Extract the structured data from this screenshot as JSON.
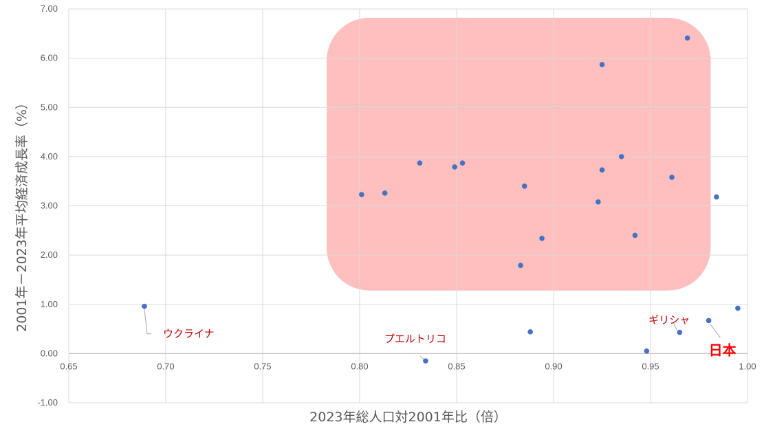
{
  "chart_data": {
    "type": "scatter",
    "xlabel": "2023年総人口対2001年比（倍）",
    "ylabel": "2001年－2023年平均経済成長率（%）",
    "xlim": [
      0.65,
      1.0
    ],
    "ylim": [
      -1.0,
      7.0
    ],
    "x_ticks": [
      "0.65",
      "0.70",
      "0.75",
      "0.80",
      "0.85",
      "0.90",
      "0.95",
      "1.00"
    ],
    "y_ticks": [
      "-1.00",
      "0.00",
      "1.00",
      "2.00",
      "3.00",
      "4.00",
      "5.00",
      "6.00",
      "7.00"
    ],
    "grid": true,
    "highlight_region": {
      "x": [
        0.783,
        0.981
      ],
      "y": [
        1.28,
        6.82
      ],
      "color": "#ffbfbf"
    },
    "series": [
      {
        "color": "#4472c4",
        "points": [
          {
            "x": 0.689,
            "y": 0.96
          },
          {
            "x": 0.834,
            "y": -0.15
          },
          {
            "x": 0.888,
            "y": 0.44
          },
          {
            "x": 0.948,
            "y": 0.05
          },
          {
            "x": 0.965,
            "y": 0.43
          },
          {
            "x": 0.98,
            "y": 0.67
          },
          {
            "x": 0.984,
            "y": 3.18
          },
          {
            "x": 0.995,
            "y": 0.92
          },
          {
            "x": 0.801,
            "y": 3.23
          },
          {
            "x": 0.813,
            "y": 3.26
          },
          {
            "x": 0.831,
            "y": 3.87
          },
          {
            "x": 0.849,
            "y": 3.79
          },
          {
            "x": 0.853,
            "y": 3.87
          },
          {
            "x": 0.883,
            "y": 1.79
          },
          {
            "x": 0.885,
            "y": 3.4
          },
          {
            "x": 0.894,
            "y": 2.34
          },
          {
            "x": 0.923,
            "y": 3.08
          },
          {
            "x": 0.925,
            "y": 3.73
          },
          {
            "x": 0.925,
            "y": 5.87
          },
          {
            "x": 0.935,
            "y": 4.0
          },
          {
            "x": 0.942,
            "y": 2.4
          },
          {
            "x": 0.961,
            "y": 3.58
          },
          {
            "x": 0.969,
            "y": 6.41
          }
        ]
      }
    ],
    "annotations": [
      {
        "text": "ウクライナ",
        "x": 0.689,
        "y": 0.96,
        "style": "normal"
      },
      {
        "text": "プエルトリコ",
        "x": 0.834,
        "y": -0.15,
        "style": "normal"
      },
      {
        "text": "ギリシャ",
        "x": 0.965,
        "y": 0.43,
        "style": "normal"
      },
      {
        "text": "日本",
        "x": 0.98,
        "y": 0.67,
        "style": "bold"
      }
    ]
  }
}
